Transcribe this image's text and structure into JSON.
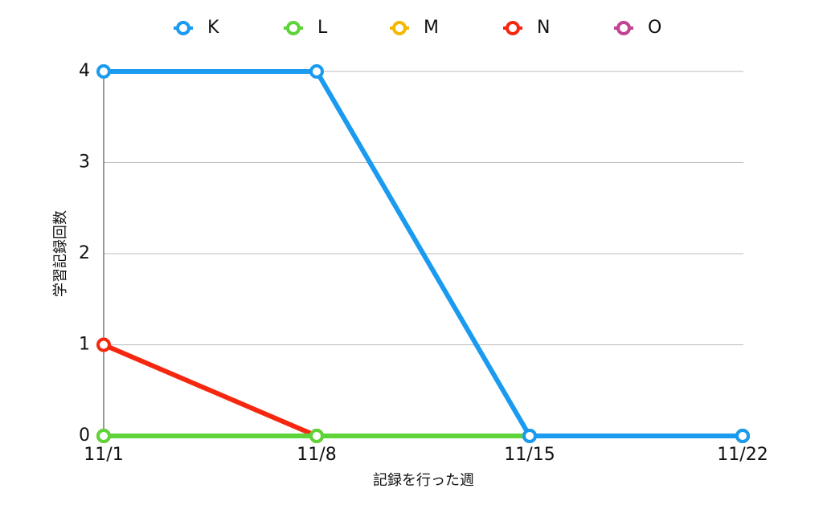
{
  "chart_data": {
    "type": "line",
    "x_label": "記録を行った週",
    "y_label": "学習記録回数",
    "categories": [
      "11/1",
      "11/8",
      "11/15",
      "11/22"
    ],
    "series": [
      {
        "name": "K",
        "color": "#1a9bf0",
        "values": [
          4,
          4,
          0,
          0
        ]
      },
      {
        "name": "L",
        "color": "#5fd33a",
        "values": [
          0,
          0,
          0,
          0
        ]
      },
      {
        "name": "M",
        "color": "#f5b800",
        "values": [
          0,
          0,
          0,
          0
        ]
      },
      {
        "name": "N",
        "color": "#f5280f",
        "values": [
          1,
          0,
          0,
          0
        ]
      },
      {
        "name": "O",
        "color": "#c0448f",
        "values": [
          0,
          0,
          0,
          0
        ]
      }
    ],
    "ylim": [
      0,
      4
    ],
    "yticks": [
      0,
      1,
      2,
      3,
      4
    ],
    "grid": true,
    "legend": "top"
  }
}
